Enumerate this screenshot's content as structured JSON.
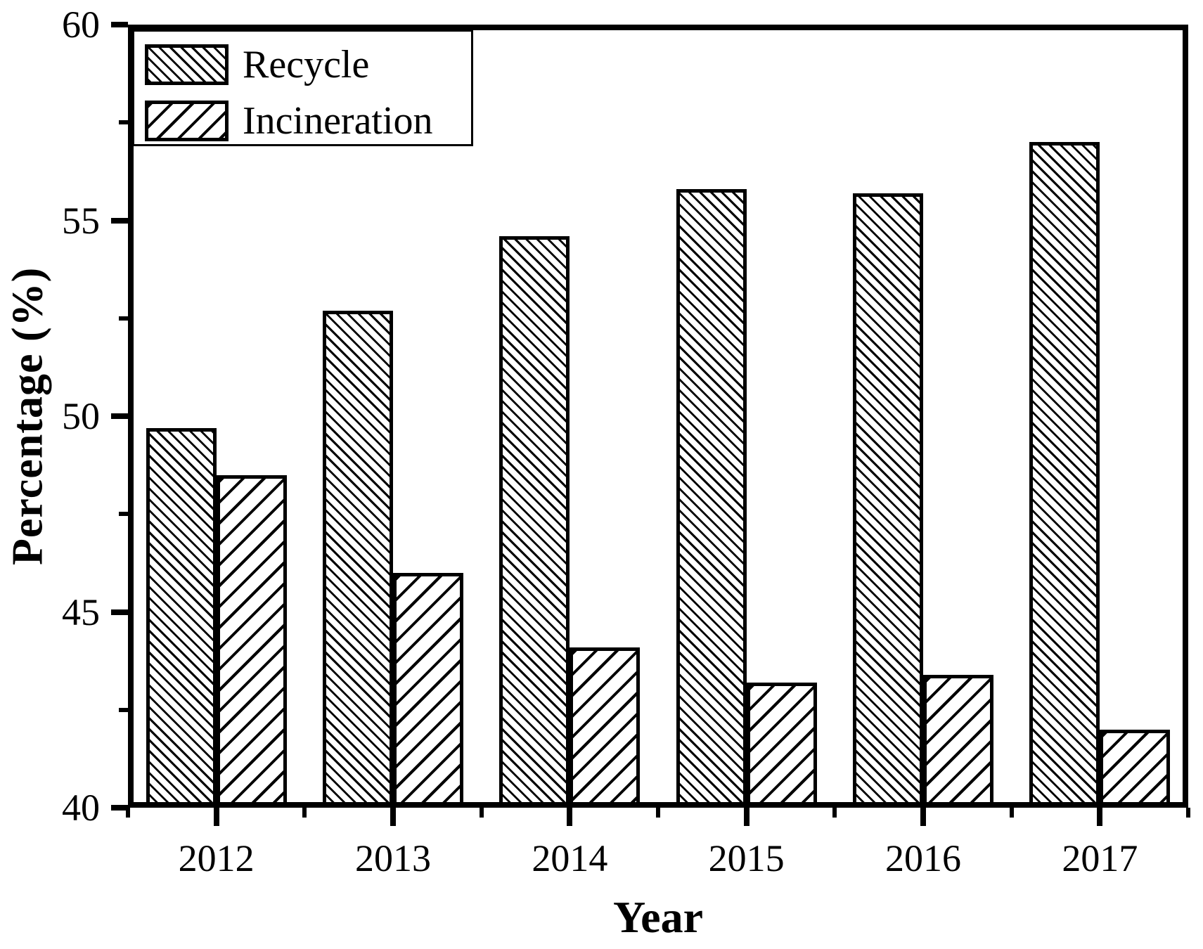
{
  "chart_data": {
    "type": "bar",
    "title": "",
    "xlabel": "Year",
    "ylabel": "Percentage (%)",
    "categories": [
      "2012",
      "2013",
      "2014",
      "2015",
      "2016",
      "2017"
    ],
    "series": [
      {
        "name": "Recycle",
        "hatch": "backslash",
        "values": [
          49.7,
          52.7,
          54.6,
          55.8,
          55.7,
          57.0
        ]
      },
      {
        "name": "Incineration",
        "hatch": "slash",
        "values": [
          48.5,
          46.0,
          44.1,
          43.2,
          43.4,
          42.0
        ]
      }
    ],
    "ylim": [
      40,
      60
    ],
    "y_major_ticks": [
      40,
      45,
      50,
      55,
      60
    ],
    "y_minor_ticks": [
      42.5,
      47.5,
      52.5,
      57.5
    ],
    "x_minor_ticks_between_groups": true,
    "grid": false,
    "legend_position": "top-left",
    "colors": {
      "foreground": "#000000",
      "background": "#ffffff"
    }
  }
}
